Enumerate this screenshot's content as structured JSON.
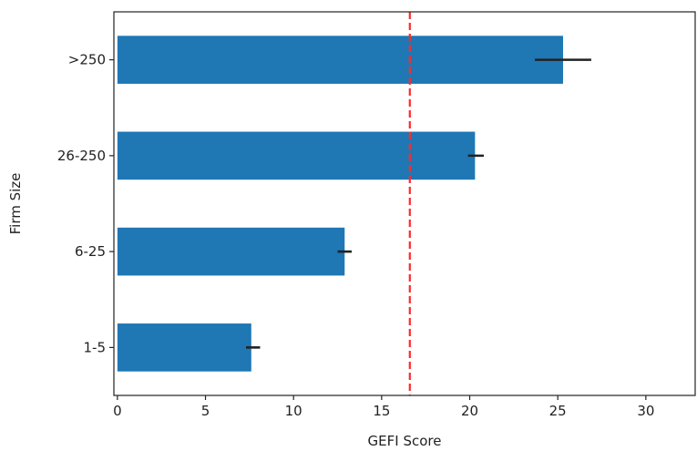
{
  "chart_data": {
    "type": "bar",
    "orientation": "horizontal",
    "categories": [
      "1-5",
      "6-25",
      "26-250",
      ">250"
    ],
    "values": [
      7.6,
      12.9,
      20.3,
      25.3
    ],
    "error_bars": [
      [
        7.3,
        8.1
      ],
      [
        12.5,
        13.3
      ],
      [
        19.9,
        20.8
      ],
      [
        23.7,
        26.9
      ]
    ],
    "reference_line": {
      "x": 16.6,
      "style": "dashed",
      "color": "#ff2a2a"
    },
    "xlabel": "GEFI Score",
    "ylabel": "Firm Size",
    "xlim": [
      -0.2,
      32.8
    ],
    "xticks": [
      0,
      5,
      10,
      15,
      20,
      25,
      30
    ],
    "grid": false,
    "bar_color": "#1f77b4",
    "error_color": "#222222"
  }
}
